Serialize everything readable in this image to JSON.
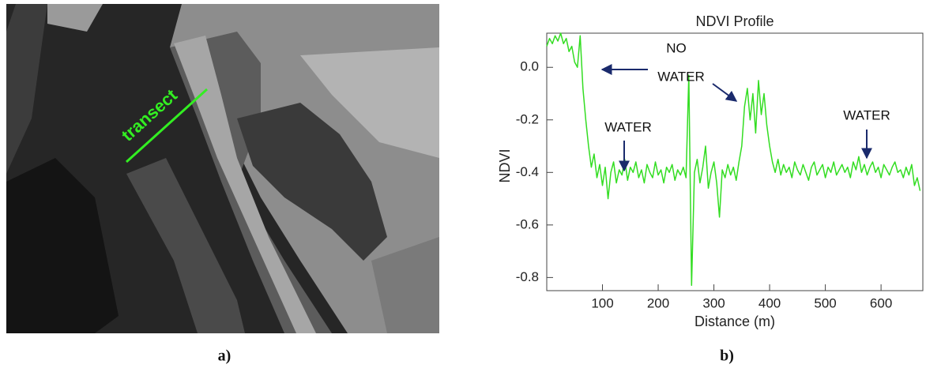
{
  "figure": {
    "image_label": "transect",
    "captions": [
      "a)",
      "b)"
    ]
  },
  "chart_data": {
    "type": "line",
    "title": "NDVI Profile",
    "x_label": "Distance (m)",
    "y_label": "NDVI",
    "color": "#33dd22",
    "annotations": [
      "NO",
      "WATER",
      "WATER",
      "WATER"
    ],
    "x": [
      0,
      5,
      10,
      15,
      20,
      25,
      30,
      35,
      40,
      45,
      50,
      55,
      60,
      65,
      70,
      75,
      80,
      85,
      90,
      95,
      100,
      105,
      110,
      115,
      120,
      125,
      130,
      135,
      140,
      145,
      150,
      155,
      160,
      165,
      170,
      175,
      180,
      185,
      190,
      195,
      200,
      205,
      210,
      215,
      220,
      225,
      230,
      235,
      240,
      245,
      250,
      255,
      260,
      265,
      270,
      275,
      280,
      285,
      290,
      295,
      300,
      305,
      310,
      315,
      320,
      325,
      330,
      335,
      340,
      345,
      350,
      355,
      360,
      365,
      370,
      375,
      380,
      385,
      390,
      395,
      400,
      405,
      410,
      415,
      420,
      425,
      430,
      435,
      440,
      445,
      450,
      455,
      460,
      465,
      470,
      475,
      480,
      485,
      490,
      495,
      500,
      505,
      510,
      515,
      520,
      525,
      530,
      535,
      540,
      545,
      550,
      555,
      560,
      565,
      570,
      575,
      580,
      585,
      590,
      595,
      600,
      605,
      610,
      615,
      620,
      625,
      630,
      635,
      640,
      645,
      650,
      655,
      660,
      665,
      670
    ],
    "values": [
      0.08,
      0.11,
      0.09,
      0.12,
      0.1,
      0.13,
      0.09,
      0.11,
      0.06,
      0.08,
      0.02,
      0.0,
      0.12,
      -0.08,
      -0.2,
      -0.3,
      -0.38,
      -0.33,
      -0.42,
      -0.37,
      -0.45,
      -0.38,
      -0.5,
      -0.4,
      -0.36,
      -0.44,
      -0.39,
      -0.41,
      -0.35,
      -0.43,
      -0.38,
      -0.4,
      -0.36,
      -0.42,
      -0.39,
      -0.44,
      -0.37,
      -0.4,
      -0.42,
      -0.36,
      -0.41,
      -0.39,
      -0.44,
      -0.38,
      -0.4,
      -0.37,
      -0.43,
      -0.39,
      -0.41,
      -0.38,
      -0.42,
      -0.03,
      -0.83,
      -0.4,
      -0.35,
      -0.44,
      -0.38,
      -0.3,
      -0.46,
      -0.4,
      -0.36,
      -0.44,
      -0.57,
      -0.39,
      -0.42,
      -0.37,
      -0.41,
      -0.38,
      -0.43,
      -0.36,
      -0.3,
      -0.15,
      -0.08,
      -0.2,
      -0.1,
      -0.25,
      -0.05,
      -0.18,
      -0.1,
      -0.22,
      -0.3,
      -0.36,
      -0.4,
      -0.35,
      -0.41,
      -0.37,
      -0.4,
      -0.38,
      -0.42,
      -0.36,
      -0.39,
      -0.41,
      -0.37,
      -0.4,
      -0.43,
      -0.38,
      -0.36,
      -0.41,
      -0.39,
      -0.37,
      -0.42,
      -0.38,
      -0.4,
      -0.36,
      -0.41,
      -0.39,
      -0.37,
      -0.4,
      -0.38,
      -0.42,
      -0.36,
      -0.39,
      -0.34,
      -0.4,
      -0.37,
      -0.41,
      -0.38,
      -0.36,
      -0.4,
      -0.38,
      -0.42,
      -0.37,
      -0.39,
      -0.41,
      -0.38,
      -0.36,
      -0.4,
      -0.39,
      -0.42,
      -0.38,
      -0.41,
      -0.37,
      -0.45,
      -0.42,
      -0.47
    ],
    "xlim": [
      0,
      675
    ],
    "ylim": [
      -0.85,
      0.13
    ],
    "xticks": [
      100,
      200,
      300,
      400,
      500,
      600
    ],
    "yticks": [
      {
        "value": 0,
        "label": "0.0"
      },
      -0.2,
      -0.4,
      -0.6,
      -0.8
    ]
  }
}
